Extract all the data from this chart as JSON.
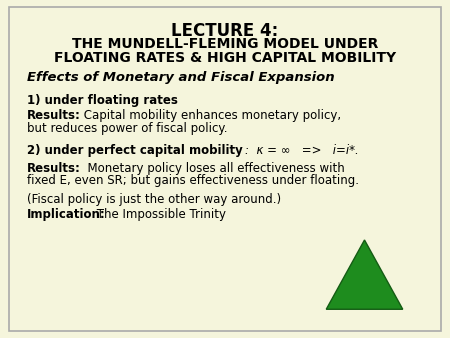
{
  "background_color": "#f5f5dc",
  "title_line1": "LECTURE 4:",
  "title_line2": "THE MUNDELL-FLEMING MODEL UNDER",
  "title_line3": "FLOATING RATES & HIGH CAPITAL MOBILITY",
  "section_header": "Effects of Monetary and Fiscal Expansion",
  "item1_header": "1) under floating rates",
  "item1_results_bold": "Results:",
  "item1_results_normal": " Capital mobility enhances monetary policy,",
  "item1_results_line2": "but reduces power of fiscal policy.",
  "item2_header_bold": "2) under perfect capital mobility",
  "item2_header_math": ":  κ = ∞   =>   i=i*.",
  "item2_results_bold": "Results:",
  "item2_results_normal": "  Monetary policy loses all effectiveness with",
  "item2_results_line2": "fixed E, even SR; but gains effectiveness under floating.",
  "item3_normal": "(Fiscal policy is just the other way around.)",
  "item4_bold": "Implication:",
  "item4_normal": " The Impossible Trinity",
  "title_fontsize": 12,
  "subtitle_fontsize": 10,
  "body_fontsize": 8.5,
  "section_fontsize": 9.5,
  "text_color": "#000000",
  "border_color": "#aaaaaa",
  "triangle_color": "#1e8c1e",
  "triangle_edge": "#145c14"
}
